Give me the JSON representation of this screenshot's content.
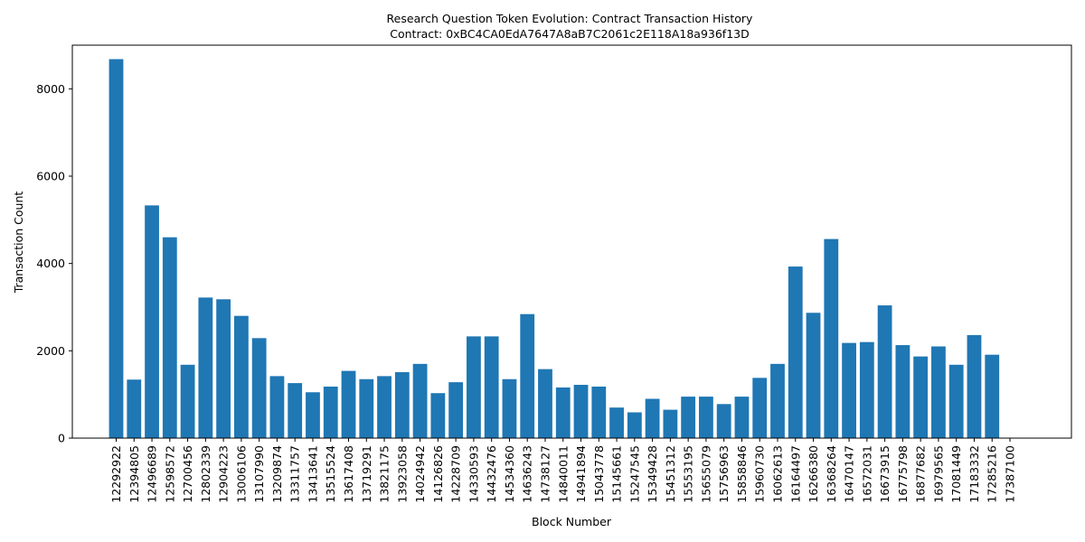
{
  "chart_data": {
    "type": "bar",
    "title": "Research Question Token Evolution: Contract Transaction History",
    "subtitle": "Contract: 0xBC4CA0EdA7647A8aB7C2061c2E118A18a936f13D",
    "xlabel": "Block Number",
    "ylabel": "Transaction Count",
    "ylim": [
      0,
      9000
    ],
    "yticks": [
      0,
      2000,
      4000,
      6000,
      8000
    ],
    "grid": false,
    "legend": "none",
    "bar_color": "#1f77b4",
    "categories": [
      "12292922",
      "12394805",
      "12496689",
      "12598572",
      "12700456",
      "12802339",
      "12904223",
      "13006106",
      "13107990",
      "13209874",
      "13311757",
      "13413641",
      "13515524",
      "13617408",
      "13719291",
      "13821175",
      "13923058",
      "14024942",
      "14126826",
      "14228709",
      "14330593",
      "14432476",
      "14534360",
      "14636243",
      "14738127",
      "14840011",
      "14941894",
      "15043778",
      "15145661",
      "15247545",
      "15349428",
      "15451312",
      "15553195",
      "15655079",
      "15756963",
      "15858846",
      "15960730",
      "16062613",
      "16164497",
      "16266380",
      "16368264",
      "16470147",
      "16572031",
      "16673915",
      "16775798",
      "16877682",
      "16979565",
      "17081449",
      "17183332",
      "17285216",
      "17387100"
    ],
    "values": [
      8680,
      1340,
      5330,
      4600,
      1680,
      3220,
      3180,
      2800,
      2290,
      1420,
      1260,
      1050,
      1180,
      1540,
      1350,
      1420,
      1510,
      1700,
      1030,
      1280,
      2330,
      2330,
      1350,
      2840,
      1580,
      1160,
      1220,
      1180,
      700,
      590,
      900,
      650,
      950,
      950,
      780,
      950,
      1380,
      1700,
      3930,
      2870,
      4560,
      2180,
      2200,
      3040,
      2130,
      1870,
      2100,
      1680,
      2360,
      1910,
      null
    ]
  }
}
